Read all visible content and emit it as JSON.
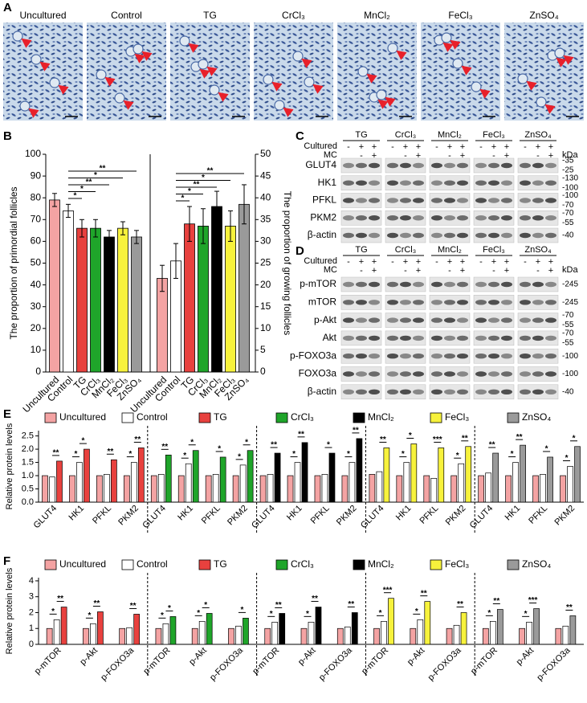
{
  "panel_a": {
    "label": "A",
    "images": [
      "Uncultured",
      "Control",
      "TG",
      "CrCl₃",
      "MnCl₂",
      "FeCl₃",
      "ZnSO₄"
    ]
  },
  "chart_data": [
    {
      "type": "dual_bar",
      "label": "B",
      "categories": [
        "Uncultured",
        "Control",
        "TG",
        "CrCl₃",
        "MnCl₂",
        "FeCl₃",
        "ZnSO₄"
      ],
      "colors": [
        "#f4a3a3",
        "#ffffff",
        "#e8413e",
        "#1fa52a",
        "#000000",
        "#f7f23c",
        "#9a9a9a"
      ],
      "ylabel": "The proportion of primordial follicles",
      "y2label": "The proportion of growing follicles",
      "series": [
        {
          "values": [
            79,
            74,
            66,
            66,
            62,
            66,
            62
          ],
          "errors": [
            3,
            3,
            4,
            4,
            3,
            3,
            3
          ],
          "stars": [
            "*",
            "*",
            "**",
            "*",
            "**"
          ]
        },
        {
          "axis": "y2",
          "values": [
            21.5,
            25.5,
            34,
            33.5,
            38,
            33.5,
            38.5
          ],
          "errors": [
            3,
            4,
            4,
            4,
            3.5,
            3.5,
            4.5
          ],
          "stars": [
            "*",
            "*",
            "**",
            "*",
            "**"
          ]
        }
      ],
      "ylim": [
        0,
        100
      ],
      "yticks": [
        0,
        10,
        20,
        30,
        40,
        50,
        60,
        70,
        80,
        90,
        100
      ],
      "y2lim": [
        0,
        50
      ],
      "y2ticks": [
        0,
        5,
        10,
        15,
        20,
        25,
        30,
        35,
        40,
        45,
        50
      ]
    },
    {
      "type": "grouped_bar",
      "label": "E",
      "ylabel": "Relative protein levels",
      "series": [
        {
          "name": "Uncultured",
          "color": "#f4a3a3"
        },
        {
          "name": "Control",
          "color": "#ffffff"
        },
        {
          "name": "TG",
          "color": "#e8413e"
        },
        {
          "name": "CrCl₃",
          "color": "#1fa52a"
        },
        {
          "name": "MnCl₂",
          "color": "#000000"
        },
        {
          "name": "FeCl₃",
          "color": "#f7f23c"
        },
        {
          "name": "ZnSO₄",
          "color": "#9a9a9a"
        }
      ],
      "proteins": [
        "GLUT4",
        "HK1",
        "PFKL",
        "PKM2"
      ],
      "groups": [
        {
          "values": [
            [
              1.0,
              0.95,
              1.55
            ],
            [
              1.0,
              1.5,
              2.0
            ],
            [
              1.0,
              1.05,
              1.6
            ],
            [
              1.0,
              1.5,
              2.05
            ]
          ],
          "stars": [
            [
              "**"
            ],
            [
              "*",
              "*"
            ],
            [
              "**"
            ],
            [
              "*",
              "**"
            ]
          ]
        },
        {
          "values": [
            [
              1.0,
              1.05,
              1.78
            ],
            [
              1.0,
              1.45,
              1.95
            ],
            [
              1.0,
              1.05,
              1.7
            ],
            [
              1.0,
              1.4,
              1.95
            ]
          ],
          "stars": [
            [
              "**"
            ],
            [
              "*",
              "*"
            ],
            [
              "*"
            ],
            [
              "*",
              "*"
            ]
          ]
        },
        {
          "values": [
            [
              1.0,
              1.05,
              1.85
            ],
            [
              1.0,
              1.5,
              2.25
            ],
            [
              1.0,
              1.05,
              1.85
            ],
            [
              1.0,
              1.5,
              2.4
            ]
          ],
          "stars": [
            [
              "**"
            ],
            [
              "*",
              "**"
            ],
            [
              "*"
            ],
            [
              "*",
              "**"
            ]
          ]
        },
        {
          "values": [
            [
              1.05,
              1.15,
              2.05
            ],
            [
              1.0,
              1.5,
              2.2
            ],
            [
              1.0,
              0.9,
              2.05
            ],
            [
              1.0,
              1.45,
              2.1
            ]
          ],
          "stars": [
            [
              "**"
            ],
            [
              "*",
              "*"
            ],
            [
              "***"
            ],
            [
              "*",
              "**"
            ]
          ]
        },
        {
          "values": [
            [
              1.0,
              1.1,
              1.85
            ],
            [
              1.0,
              1.5,
              2.15
            ],
            [
              1.0,
              1.05,
              1.7
            ],
            [
              1.0,
              1.35,
              2.1
            ]
          ],
          "stars": [
            [
              "**"
            ],
            [
              "*",
              "**"
            ],
            [
              "*"
            ],
            [
              "*",
              "*"
            ]
          ]
        }
      ],
      "ylim": [
        0,
        2.7
      ],
      "yticks": [
        {
          "value": 0,
          "label": "0.0"
        },
        0.5,
        {
          "value": 1,
          "label": "1.0"
        },
        1.5,
        {
          "value": 2,
          "label": "2.0"
        },
        2.5
      ]
    },
    {
      "type": "grouped_bar",
      "label": "F",
      "ylabel": "Relative protein levels",
      "series": [
        {
          "name": "Uncultured",
          "color": "#f4a3a3"
        },
        {
          "name": "Control",
          "color": "#ffffff"
        },
        {
          "name": "TG",
          "color": "#e8413e"
        },
        {
          "name": "CrCl₃",
          "color": "#1fa52a"
        },
        {
          "name": "MnCl₂",
          "color": "#000000"
        },
        {
          "name": "FeCl₃",
          "color": "#f7f23c"
        },
        {
          "name": "ZnSO₄",
          "color": "#9a9a9a"
        }
      ],
      "proteins": [
        "p-mTOR",
        "p-Akt",
        "p-FOXO3a"
      ],
      "groups": [
        {
          "values": [
            [
              1.0,
              1.55,
              2.35
            ],
            [
              1.0,
              1.3,
              2.05
            ],
            [
              1.0,
              1.05,
              1.9
            ]
          ],
          "stars": [
            [
              "*",
              "**"
            ],
            [
              "*",
              "**"
            ],
            [
              "**"
            ]
          ]
        },
        {
          "values": [
            [
              1.0,
              1.3,
              1.75
            ],
            [
              1.0,
              1.45,
              1.95
            ],
            [
              1.0,
              1.15,
              1.65
            ]
          ],
          "stars": [
            [
              "*",
              "*"
            ],
            [
              "*",
              "*"
            ],
            [
              "*"
            ]
          ]
        },
        {
          "values": [
            [
              1.0,
              1.4,
              1.95
            ],
            [
              1.0,
              1.4,
              2.35
            ],
            [
              1.0,
              1.1,
              2.0
            ]
          ],
          "stars": [
            [
              "*",
              "**"
            ],
            [
              "*",
              "**"
            ],
            [
              "**"
            ]
          ]
        },
        {
          "values": [
            [
              1.0,
              1.45,
              2.9
            ],
            [
              1.0,
              1.55,
              2.7
            ],
            [
              1.0,
              1.2,
              2.0
            ]
          ],
          "stars": [
            [
              "*",
              "***"
            ],
            [
              "*",
              "**"
            ],
            [
              "**"
            ]
          ]
        },
        {
          "values": [
            [
              1.0,
              1.45,
              2.2
            ],
            [
              1.0,
              1.4,
              2.25
            ],
            [
              1.0,
              1.15,
              1.8
            ]
          ],
          "stars": [
            [
              "*",
              "**"
            ],
            [
              "*",
              "***"
            ],
            [
              "**"
            ]
          ]
        }
      ],
      "ylim": [
        0,
        4.2
      ],
      "yticks": [
        0,
        1,
        2,
        3,
        4
      ]
    }
  ],
  "blots": [
    {
      "label": "C",
      "columns": [
        "TG",
        "CrCl₃",
        "MnCl₂",
        "FeCl₃",
        "ZnSO₄"
      ],
      "cultured_label": "Cultured",
      "cultured": [
        "-",
        "+",
        "+"
      ],
      "mc_label": "MC",
      "mc": [
        "-",
        "+"
      ],
      "kda_label": "kDa",
      "rows": [
        {
          "name": "GLUT4",
          "kda": [
            "-35",
            "-25"
          ]
        },
        {
          "name": "HK1",
          "kda": [
            "-130",
            "-100"
          ]
        },
        {
          "name": "PFKL",
          "kda": [
            "-100",
            "-70"
          ]
        },
        {
          "name": "PKM2",
          "kda": [
            "-70",
            "-55"
          ]
        },
        {
          "name": "β-actin",
          "kda": [
            "-40"
          ]
        }
      ]
    },
    {
      "label": "D",
      "columns": [
        "TG",
        "CrCl₃",
        "MnCl₂",
        "FeCl₃",
        "ZnSO₄"
      ],
      "cultured_label": "Cultured",
      "cultured": [
        "-",
        "+",
        "+"
      ],
      "mc_label": "MC",
      "mc": [
        "-",
        "+"
      ],
      "kda_label": "kDa",
      "rows": [
        {
          "name": "p-mTOR",
          "kda": [
            "-245"
          ]
        },
        {
          "name": "mTOR",
          "kda": [
            "-245"
          ]
        },
        {
          "name": "p-Akt",
          "kda": [
            "-70",
            "-55"
          ]
        },
        {
          "name": "Akt",
          "kda": [
            "-70",
            "-55"
          ]
        },
        {
          "name": "p-FOXO3a",
          "kda": [
            "-100"
          ]
        },
        {
          "name": "FOXO3a",
          "kda": [
            "-100"
          ]
        },
        {
          "name": "β-actin",
          "kda": [
            "-40"
          ]
        }
      ]
    }
  ]
}
